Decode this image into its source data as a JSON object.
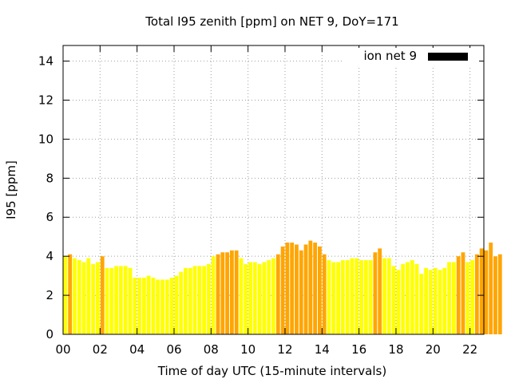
{
  "chart_data": {
    "type": "bar",
    "title": "Total I95 zenith [ppm] on NET 9, DoY=171",
    "xlabel": "Time of day UTC (15-minute intervals)",
    "ylabel": "I95 [ppm]",
    "xlim": [
      0,
      22.75
    ],
    "ylim": [
      0,
      14.8
    ],
    "xticks": [
      0,
      2,
      4,
      6,
      8,
      10,
      12,
      14,
      16,
      18,
      20,
      22
    ],
    "xtick_labels": [
      "00",
      "02",
      "04",
      "06",
      "08",
      "10",
      "12",
      "14",
      "16",
      "18",
      "20",
      "22"
    ],
    "yticks": [
      0,
      2,
      4,
      6,
      8,
      10,
      12,
      14
    ],
    "ytick_labels": [
      "0",
      "2",
      "4",
      "6",
      "8",
      "10",
      "12",
      "14"
    ],
    "grid": true,
    "legend": {
      "label": "ion net 9",
      "position": "top-right",
      "color": "#000000"
    },
    "colors": {
      "low": "#ffff00",
      "mid": "#f0f010",
      "high": "#ffa500"
    },
    "bin_width_hours": 0.25,
    "values": [
      4.0,
      4.1,
      3.9,
      3.8,
      3.7,
      3.9,
      3.6,
      3.7,
      4.0,
      3.4,
      3.4,
      3.5,
      3.5,
      3.5,
      3.4,
      2.9,
      2.9,
      2.9,
      3.0,
      2.9,
      2.8,
      2.8,
      2.8,
      2.9,
      3.0,
      3.2,
      3.4,
      3.4,
      3.5,
      3.5,
      3.5,
      3.6,
      4.0,
      4.1,
      4.2,
      4.2,
      4.3,
      4.3,
      3.9,
      3.6,
      3.7,
      3.7,
      3.6,
      3.7,
      3.8,
      3.9,
      4.1,
      4.5,
      4.7,
      4.7,
      4.6,
      4.3,
      4.6,
      4.8,
      4.7,
      4.5,
      4.1,
      3.8,
      3.7,
      3.7,
      3.8,
      3.8,
      3.9,
      3.9,
      3.8,
      3.8,
      3.8,
      4.2,
      4.4,
      3.9,
      3.9,
      3.5,
      3.3,
      3.6,
      3.7,
      3.8,
      3.6,
      3.1,
      3.4,
      3.3,
      3.4,
      3.3,
      3.4,
      3.7,
      3.7,
      4.0,
      4.2,
      3.7,
      3.8,
      4.1,
      4.4,
      4.3,
      4.7,
      4.0,
      4.1
    ],
    "colors_per_bar": [
      "low",
      "high",
      "low",
      "low",
      "low",
      "low",
      "low",
      "low",
      "high",
      "low",
      "low",
      "low",
      "low",
      "low",
      "low",
      "low",
      "low",
      "low",
      "low",
      "low",
      "low",
      "low",
      "low",
      "low",
      "low",
      "low",
      "low",
      "low",
      "low",
      "low",
      "low",
      "low",
      "low",
      "high",
      "high",
      "high",
      "high",
      "high",
      "low",
      "low",
      "low",
      "low",
      "low",
      "low",
      "low",
      "low",
      "high",
      "high",
      "high",
      "high",
      "high",
      "high",
      "high",
      "high",
      "high",
      "high",
      "high",
      "low",
      "low",
      "low",
      "low",
      "low",
      "low",
      "low",
      "low",
      "low",
      "low",
      "high",
      "high",
      "low",
      "low",
      "low",
      "low",
      "low",
      "low",
      "low",
      "low",
      "low",
      "low",
      "low",
      "low",
      "low",
      "low",
      "low",
      "low",
      "high",
      "high",
      "low",
      "low",
      "high",
      "high",
      "high",
      "high",
      "high",
      "high"
    ]
  }
}
